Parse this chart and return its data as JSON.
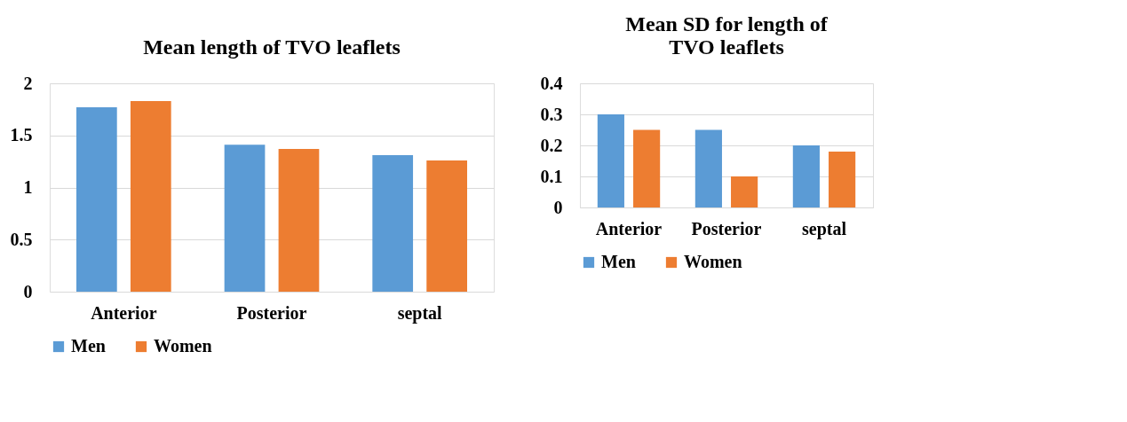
{
  "chart_data": [
    {
      "type": "bar",
      "title": "Mean length of TVO leaflets",
      "categories": [
        "Anterior",
        "Posterior",
        "septal"
      ],
      "series": [
        {
          "name": "Men",
          "color": "#5b9bd5",
          "values": [
            1.77,
            1.41,
            1.31
          ]
        },
        {
          "name": "Women",
          "color": "#ed7d31",
          "values": [
            1.83,
            1.37,
            1.26
          ]
        }
      ],
      "ylim": [
        0,
        2
      ],
      "yticks": [
        0,
        0.5,
        1,
        1.5,
        2
      ],
      "grid": "y",
      "legend": "bottom"
    },
    {
      "type": "bar",
      "title": [
        "Mean SD for length of",
        "TVO leaflets"
      ],
      "categories": [
        "Anterior",
        "Posterior",
        "septal"
      ],
      "series": [
        {
          "name": "Men",
          "color": "#5b9bd5",
          "values": [
            0.3,
            0.25,
            0.2
          ]
        },
        {
          "name": "Women",
          "color": "#ed7d31",
          "values": [
            0.25,
            0.1,
            0.18
          ]
        }
      ],
      "ylim": [
        0,
        0.4
      ],
      "yticks": [
        0,
        0.1,
        0.2,
        0.3,
        0.4
      ],
      "grid": "y",
      "legend": "bottom"
    }
  ]
}
